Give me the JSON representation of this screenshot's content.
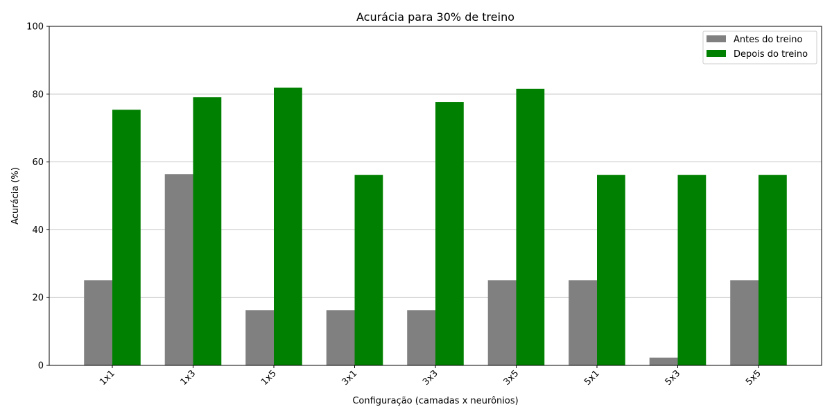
{
  "chart_data": {
    "type": "bar",
    "title": "Acurácia para 30% de treino",
    "xlabel": "Configuração (camadas x neurônios)",
    "ylabel": "Acurácia (%)",
    "categories": [
      "1x1",
      "1x3",
      "1x5",
      "3x1",
      "3x3",
      "3x5",
      "5x1",
      "5x3",
      "5x5"
    ],
    "series": [
      {
        "name": "Antes do treino",
        "color": "#808080",
        "values": [
          25.1,
          56.4,
          16.3,
          16.3,
          16.3,
          25.1,
          25.1,
          2.3,
          25.1
        ]
      },
      {
        "name": "Depois do treino",
        "color": "#008000",
        "values": [
          75.4,
          79.1,
          81.9,
          56.2,
          77.7,
          81.6,
          56.2,
          56.2,
          56.2
        ]
      }
    ],
    "ylim": [
      0,
      100
    ],
    "yticks": [
      0,
      20,
      40,
      60,
      80,
      100
    ],
    "grid": "y",
    "legend": "top-right"
  }
}
